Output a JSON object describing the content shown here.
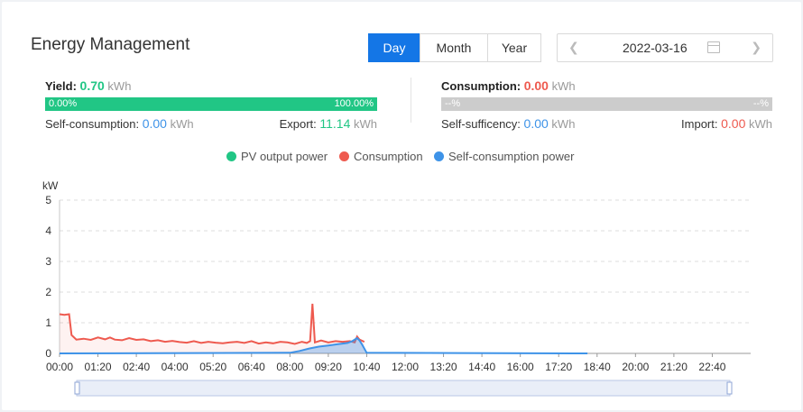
{
  "title": "Energy Management",
  "period_tabs": [
    {
      "label": "Day",
      "active": true
    },
    {
      "label": "Month",
      "active": false
    },
    {
      "label": "Year",
      "active": false
    }
  ],
  "date": "2022-03-16",
  "yield": {
    "label": "Yield:",
    "value": "0.70",
    "unit": "kWh",
    "bar_left": "0.00%",
    "bar_right": "100.00%",
    "bar_fill": 1.0,
    "self_consumption_label": "Self-consumption:",
    "self_consumption_value": "0.00",
    "export_label": "Export:",
    "export_value": "11.14"
  },
  "consumption": {
    "label": "Consumption:",
    "value": "0.00",
    "unit": "kWh",
    "bar_left": "--%",
    "bar_right": "--%",
    "self_sufficiency_label": "Self-sufficency:",
    "self_sufficiency_value": "0.00",
    "import_label": "Import:",
    "import_value": "0.00"
  },
  "legend": [
    {
      "name": "PV output power",
      "color": "#21c685"
    },
    {
      "name": "Consumption",
      "color": "#ee5a4f"
    },
    {
      "name": "Self-consumption power",
      "color": "#3e93e8"
    }
  ],
  "colors": {
    "accent": "#1476e6",
    "pv": "#21c685",
    "consumption": "#ee5a4f",
    "self_consumption": "#3e93e8",
    "bar_empty": "#cccccc"
  },
  "chart_data": {
    "type": "line",
    "ylabel": "kW",
    "ylim": [
      0,
      5
    ],
    "y_ticks": [
      "0",
      "1",
      "2",
      "3",
      "4",
      "5"
    ],
    "x_ticks": [
      "00:00",
      "01:20",
      "02:40",
      "04:00",
      "05:20",
      "06:40",
      "08:00",
      "09:20",
      "10:40",
      "12:00",
      "13:20",
      "14:40",
      "16:00",
      "17:20",
      "18:40",
      "20:00",
      "21:20",
      "22:40"
    ],
    "x_unit": "minutes after 00:00",
    "xlim": [
      0,
      1440
    ],
    "grid": true,
    "legend_position": "top-center",
    "series": [
      {
        "name": "Consumption",
        "x": [
          0,
          10,
          20,
          25,
          35,
          50,
          65,
          80,
          95,
          105,
          115,
          130,
          145,
          160,
          175,
          190,
          205,
          220,
          235,
          250,
          265,
          280,
          295,
          310,
          325,
          340,
          355,
          370,
          385,
          400,
          415,
          430,
          445,
          460,
          475,
          490,
          505,
          515,
          522,
          527,
          532,
          545,
          560,
          575,
          590,
          605,
          615,
          620,
          625,
          635
        ],
        "values": [
          1.28,
          1.26,
          1.28,
          0.6,
          0.45,
          0.48,
          0.44,
          0.52,
          0.46,
          0.52,
          0.45,
          0.43,
          0.5,
          0.44,
          0.46,
          0.4,
          0.43,
          0.38,
          0.41,
          0.37,
          0.35,
          0.4,
          0.34,
          0.38,
          0.35,
          0.33,
          0.36,
          0.38,
          0.34,
          0.4,
          0.32,
          0.36,
          0.33,
          0.38,
          0.36,
          0.31,
          0.38,
          0.34,
          0.4,
          1.62,
          0.36,
          0.42,
          0.36,
          0.4,
          0.38,
          0.4,
          0.36,
          0.55,
          0.45,
          0.38
        ]
      },
      {
        "name": "Self-consumption power",
        "x": [
          0,
          480,
          500,
          520,
          540,
          560,
          580,
          600,
          610,
          620,
          625,
          630,
          640,
          1100
        ],
        "values": [
          0,
          0.02,
          0.08,
          0.16,
          0.22,
          0.26,
          0.3,
          0.34,
          0.4,
          0.5,
          0.42,
          0.3,
          0.02,
          0
        ]
      }
    ]
  }
}
